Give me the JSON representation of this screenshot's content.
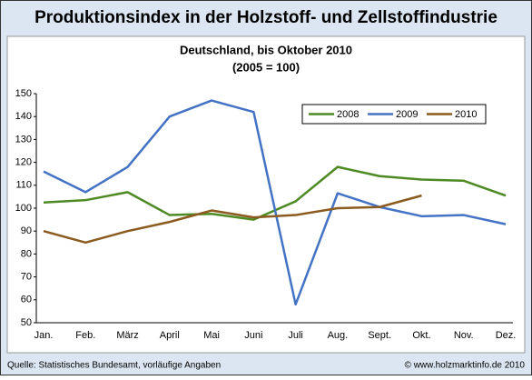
{
  "chart_data": {
    "type": "line",
    "title": "Produktionsindex in der Holzstoff- und Zellstoffindustrie",
    "subtitle": "Deutschland, bis Oktober 2010",
    "subtitle2": "(2005 = 100)",
    "categories": [
      "Jan.",
      "Feb.",
      "März",
      "April",
      "Mai",
      "Juni",
      "Juli",
      "Aug.",
      "Sept.",
      "Okt.",
      "Nov.",
      "Dez."
    ],
    "series": [
      {
        "name": "2008",
        "color": "#4e8a23",
        "values": [
          102.5,
          103.5,
          107,
          97,
          97.5,
          95,
          103,
          118,
          114,
          112.5,
          112,
          105.5
        ]
      },
      {
        "name": "2009",
        "color": "#4472c4",
        "values": [
          116,
          107,
          118,
          140,
          147,
          142,
          58,
          106.5,
          100.5,
          96.5,
          97,
          93
        ]
      },
      {
        "name": "2010",
        "color": "#8b5a1e",
        "values": [
          90,
          85,
          90,
          94,
          99,
          96,
          97,
          100,
          100.5,
          105.5,
          null,
          null
        ]
      }
    ],
    "ylim": [
      50,
      150
    ],
    "yticks": [
      50,
      60,
      70,
      80,
      90,
      100,
      110,
      120,
      130,
      140,
      150
    ],
    "grid": false,
    "legend": "top-right",
    "source": "Quelle: Statistisches Bundesamt, vorläufige Angaben",
    "credit": "© www.holzmarktinfo.de 2010"
  }
}
